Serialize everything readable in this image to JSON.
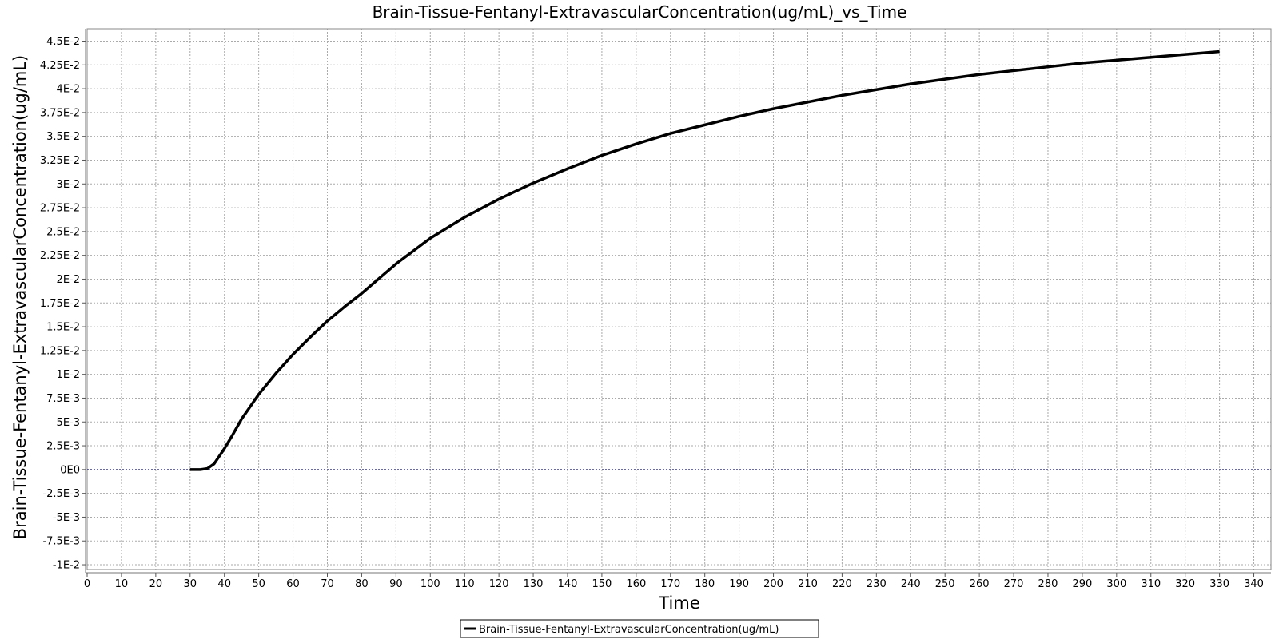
{
  "chart_data": {
    "type": "line",
    "title": "Brain-Tissue-Fentanyl-ExtravascularConcentration(ug/mL)_vs_Time",
    "xlabel": "Time",
    "ylabel": "Brain-Tissue-Fentanyl-ExtravascularConcentration(ug/mL)",
    "xlim": [
      0,
      345
    ],
    "ylim": [
      -0.0105,
      0.0463
    ],
    "x_ticks": [
      0,
      10,
      20,
      30,
      40,
      50,
      60,
      70,
      80,
      90,
      100,
      110,
      120,
      130,
      140,
      150,
      160,
      170,
      180,
      190,
      200,
      210,
      220,
      230,
      240,
      250,
      260,
      270,
      280,
      290,
      300,
      310,
      320,
      330,
      340
    ],
    "x_tick_labels": [
      "0",
      "10",
      "20",
      "30",
      "40",
      "50",
      "60",
      "70",
      "80",
      "90",
      "100",
      "110",
      "120",
      "130",
      "140",
      "150",
      "160",
      "170",
      "180",
      "190",
      "200",
      "210",
      "220",
      "230",
      "240",
      "250",
      "260",
      "270",
      "280",
      "290",
      "300",
      "310",
      "320",
      "330",
      "340"
    ],
    "y_ticks": [
      -0.01,
      -0.0075,
      -0.005,
      -0.0025,
      0,
      0.0025,
      0.005,
      0.0075,
      0.01,
      0.0125,
      0.015,
      0.0175,
      0.02,
      0.0225,
      0.025,
      0.0275,
      0.03,
      0.0325,
      0.035,
      0.0375,
      0.04,
      0.0425,
      0.045
    ],
    "y_tick_labels": [
      "-1E-2",
      "-7.5E-3",
      "-5E-3",
      "-2.5E-3",
      "0E0",
      "2.5E-3",
      "5E-3",
      "7.5E-3",
      "1E-2",
      "1.25E-2",
      "1.5E-2",
      "1.75E-2",
      "2E-2",
      "2.25E-2",
      "2.5E-2",
      "2.75E-2",
      "3E-2",
      "3.25E-2",
      "3.5E-2",
      "3.75E-2",
      "4E-2",
      "4.25E-2",
      "4.5E-2"
    ],
    "grid": true,
    "legend_position": "bottom-center",
    "series": [
      {
        "name": "Brain-Tissue-Fentanyl-ExtravascularConcentration(ug/mL)",
        "color": "#000000",
        "x": [
          30,
          33,
          35,
          37,
          40,
          42,
          45,
          50,
          55,
          60,
          65,
          70,
          75,
          80,
          90,
          100,
          110,
          120,
          130,
          140,
          150,
          160,
          170,
          180,
          190,
          200,
          210,
          220,
          230,
          240,
          250,
          260,
          270,
          280,
          290,
          300,
          310,
          320,
          330
        ],
        "y": [
          0,
          0,
          0.0001,
          0.0006,
          0.0022,
          0.0034,
          0.0053,
          0.0079,
          0.0101,
          0.0121,
          0.0139,
          0.0156,
          0.0171,
          0.0185,
          0.0216,
          0.0243,
          0.0265,
          0.0284,
          0.0301,
          0.0316,
          0.033,
          0.0342,
          0.0353,
          0.0362,
          0.0371,
          0.0379,
          0.0386,
          0.0393,
          0.0399,
          0.0405,
          0.041,
          0.0415,
          0.0419,
          0.0423,
          0.0427,
          0.043,
          0.0433,
          0.0436,
          0.0439
        ]
      }
    ]
  }
}
